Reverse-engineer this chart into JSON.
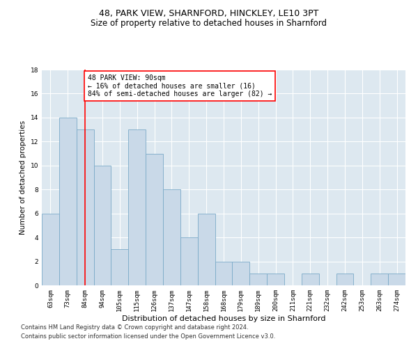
{
  "title1": "48, PARK VIEW, SHARNFORD, HINCKLEY, LE10 3PT",
  "title2": "Size of property relative to detached houses in Sharnford",
  "xlabel": "Distribution of detached houses by size in Sharnford",
  "ylabel": "Number of detached properties",
  "categories": [
    "63sqm",
    "73sqm",
    "84sqm",
    "94sqm",
    "105sqm",
    "115sqm",
    "126sqm",
    "137sqm",
    "147sqm",
    "158sqm",
    "168sqm",
    "179sqm",
    "189sqm",
    "200sqm",
    "211sqm",
    "221sqm",
    "232sqm",
    "242sqm",
    "253sqm",
    "263sqm",
    "274sqm"
  ],
  "values": [
    6,
    14,
    13,
    10,
    3,
    13,
    11,
    8,
    4,
    6,
    2,
    2,
    1,
    1,
    0,
    1,
    0,
    1,
    0,
    1,
    1
  ],
  "bar_color": "#c9d9e8",
  "bar_edge_color": "#7aaac8",
  "red_line_index": 2,
  "annotation_text": "48 PARK VIEW: 90sqm\n← 16% of detached houses are smaller (16)\n84% of semi-detached houses are larger (82) →",
  "annotation_box_color": "white",
  "annotation_box_edge": "red",
  "ylim": [
    0,
    18
  ],
  "yticks": [
    0,
    2,
    4,
    6,
    8,
    10,
    12,
    14,
    16,
    18
  ],
  "footnote1": "Contains HM Land Registry data © Crown copyright and database right 2024.",
  "footnote2": "Contains public sector information licensed under the Open Government Licence v3.0.",
  "background_color": "#dde8f0",
  "grid_color": "white",
  "title1_fontsize": 9,
  "title2_fontsize": 8.5,
  "xlabel_fontsize": 8,
  "ylabel_fontsize": 7.5,
  "tick_fontsize": 6.5,
  "annotation_fontsize": 7,
  "footnote_fontsize": 6
}
